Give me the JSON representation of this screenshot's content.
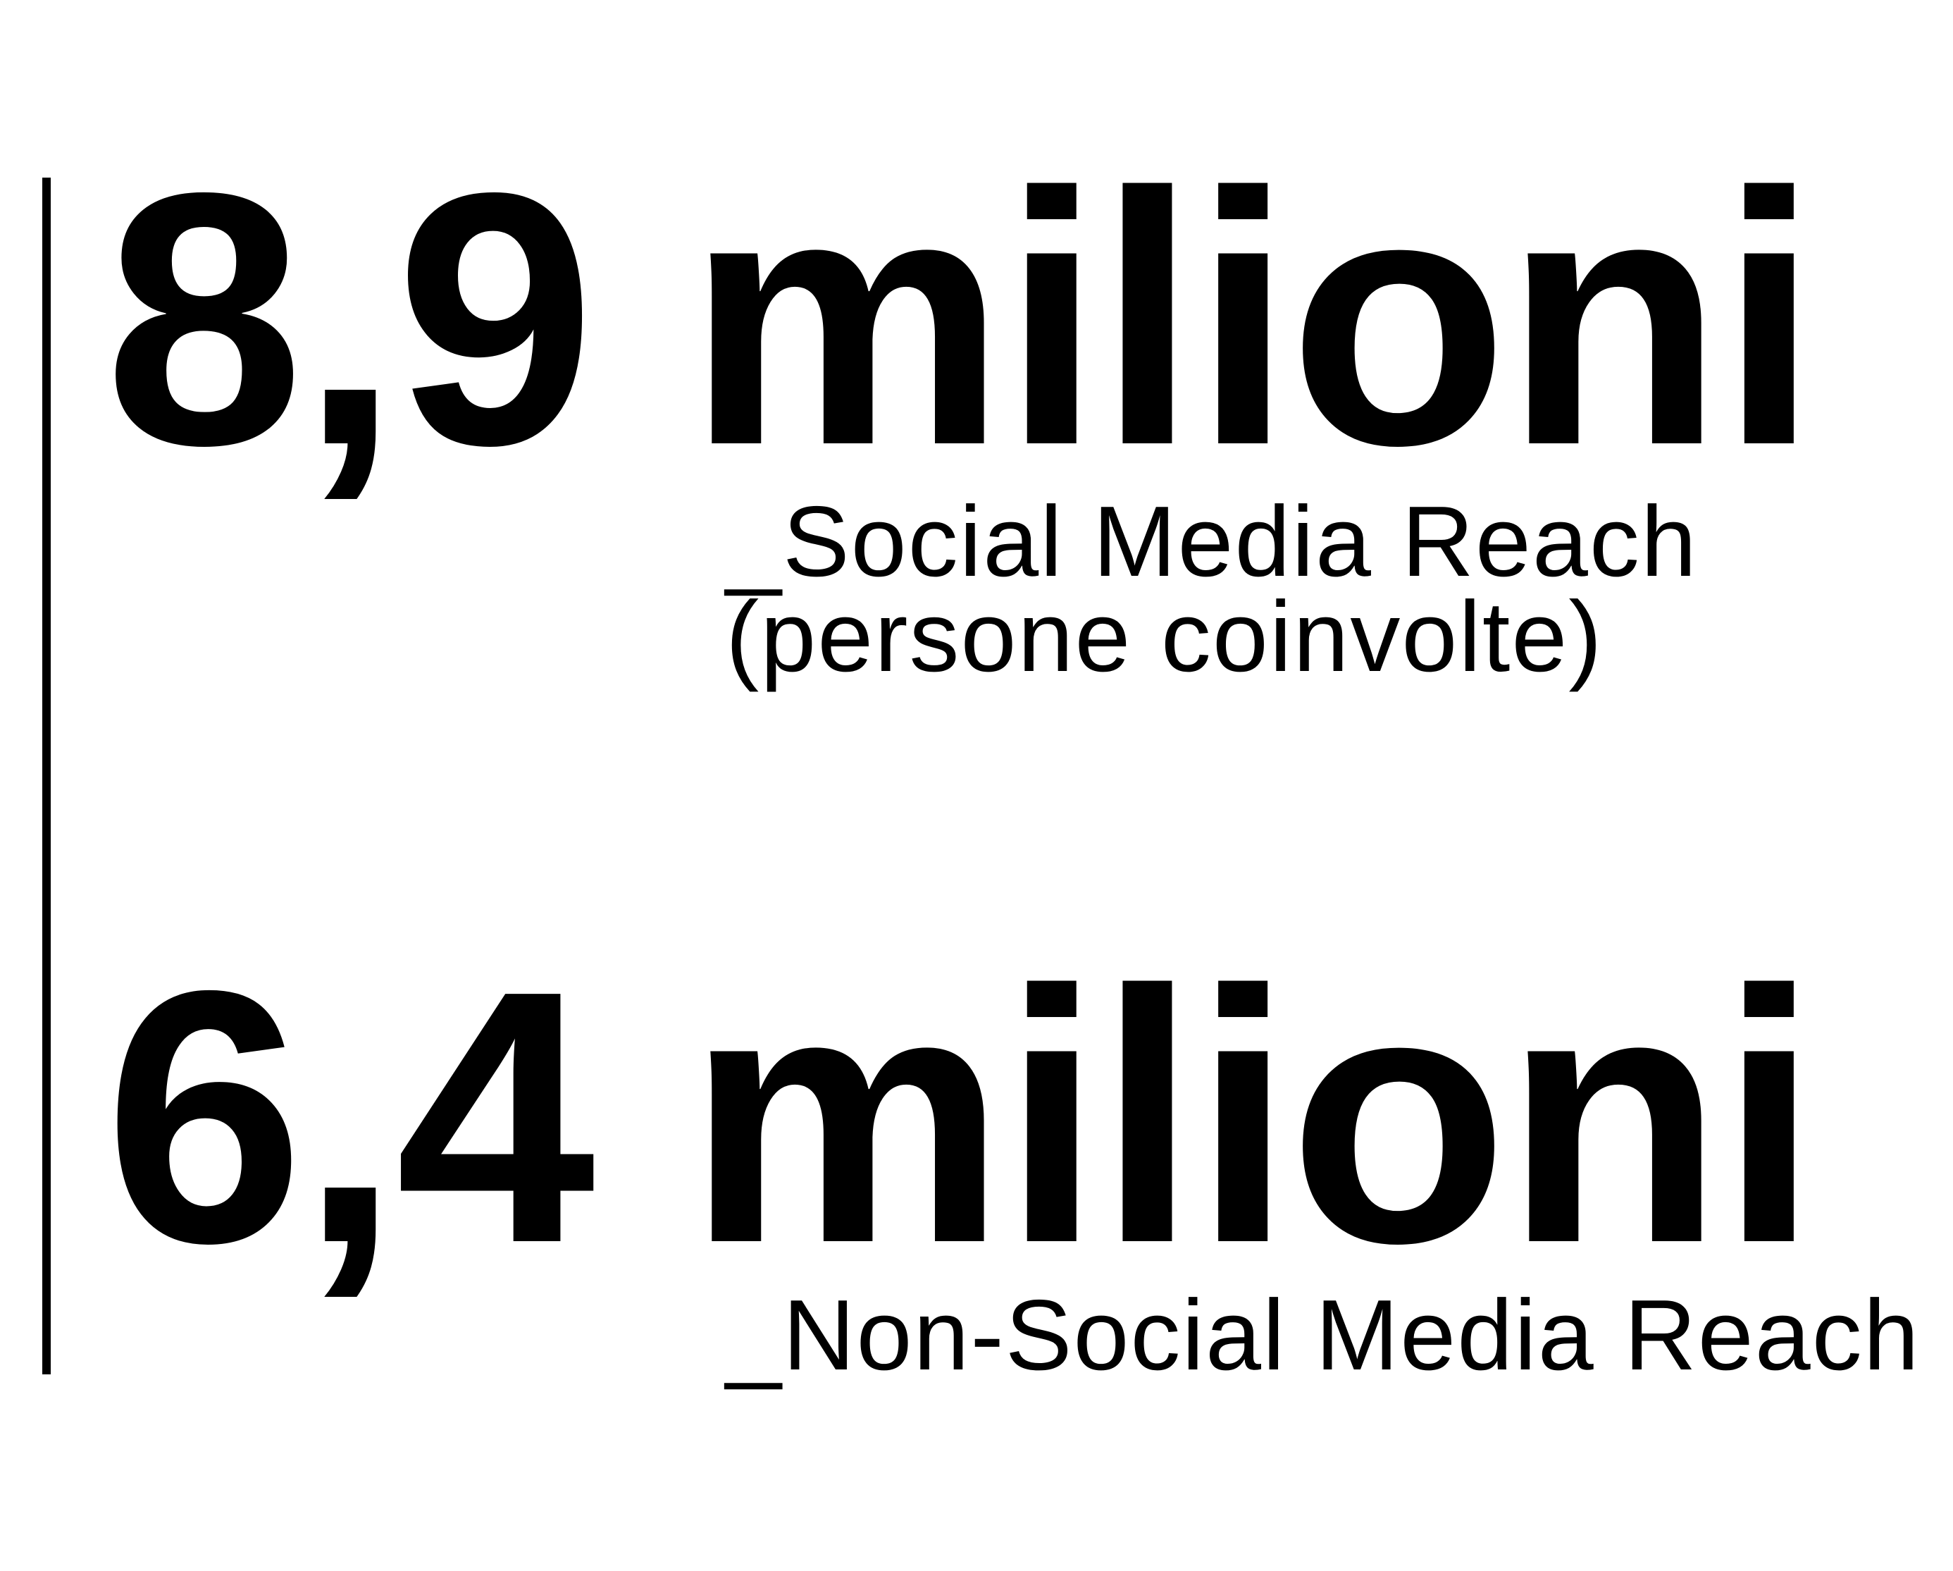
{
  "stats": [
    {
      "value": "8,9 milioni",
      "label_lines": [
        "_Social Media Reach",
        "(persone coinvolte)"
      ]
    },
    {
      "value": "6,4 milioni",
      "label_lines": [
        "_Non-Social Media Reach"
      ]
    }
  ],
  "colors": {
    "text": "#000000",
    "background": "#ffffff"
  }
}
